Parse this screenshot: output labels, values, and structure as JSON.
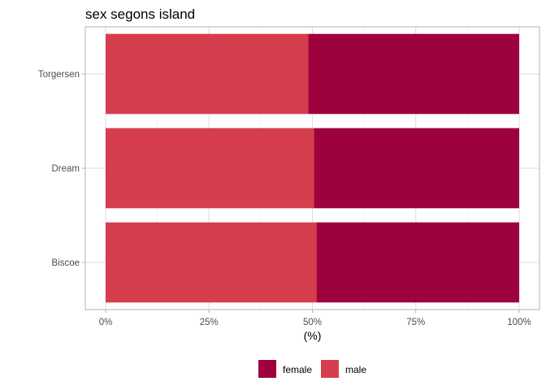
{
  "chart_data": {
    "type": "bar",
    "orientation": "horizontal",
    "stacked": true,
    "normalized": true,
    "title": "sex segons island",
    "xlabel": "(%)",
    "ylabel": "",
    "categories": [
      "Biscoe",
      "Dream",
      "Torgersen"
    ],
    "x_ticks": [
      "0%",
      "25%",
      "50%",
      "75%",
      "100%"
    ],
    "xlim": [
      0,
      1
    ],
    "series": [
      {
        "name": "male",
        "color": "#d63e4d",
        "values": [
          0.51,
          0.504,
          0.49
        ]
      },
      {
        "name": "female",
        "color": "#9e023e",
        "values": [
          0.49,
          0.496,
          0.51
        ]
      }
    ],
    "legend_order": [
      "female",
      "male"
    ],
    "legend_position": "bottom",
    "grid": true,
    "panel_border": true
  }
}
